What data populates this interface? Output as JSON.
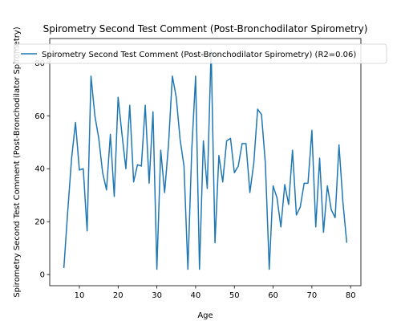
{
  "chart_data": {
    "type": "line",
    "title": "Spirometry Second Test Comment (Post-Bronchodilator Spirometry)",
    "xlabel": "Age",
    "ylabel": "Spirometry Second Test Comment (Post-Bronchodilator Spirometry)",
    "xlim": [
      2.35,
      82.65
    ],
    "ylim": [
      -4.2,
      89.2
    ],
    "xticks": [
      10,
      20,
      30,
      40,
      50,
      60,
      70,
      80
    ],
    "yticks": [
      0,
      20,
      40,
      60,
      80
    ],
    "grid": false,
    "legend_position": "top",
    "series": [
      {
        "name": "Spirometry Second Test Comment (Post-Bronchodilator Spirometry) (R2=0.06)",
        "color": "#1f77b4",
        "x": [
          6,
          7,
          8,
          9,
          10,
          11,
          12,
          13,
          14,
          15,
          16,
          17,
          18,
          19,
          20,
          21,
          22,
          23,
          24,
          25,
          26,
          27,
          28,
          29,
          30,
          31,
          32,
          33,
          34,
          35,
          36,
          37,
          38,
          39,
          40,
          41,
          42,
          43,
          44,
          45,
          46,
          47,
          48,
          49,
          50,
          51,
          52,
          53,
          54,
          55,
          56,
          57,
          58,
          59,
          60,
          61,
          62,
          63,
          64,
          65,
          66,
          67,
          68,
          69,
          70,
          71,
          72,
          73,
          74,
          75,
          76,
          77,
          78,
          79
        ],
        "y": [
          2.5,
          24,
          44,
          57.5,
          39.5,
          40,
          16.5,
          75,
          60,
          51.5,
          38.5,
          32,
          53,
          29.5,
          67,
          53,
          40,
          64,
          35,
          41.5,
          41,
          64,
          34.5,
          61.5,
          2,
          47,
          31,
          49,
          75,
          67,
          51,
          41,
          2,
          47,
          75,
          2,
          50.5,
          32.5,
          85,
          12,
          45,
          35,
          50.5,
          51.5,
          38.5,
          41,
          49.5,
          49.5,
          31,
          42,
          62.5,
          60.5,
          42,
          2,
          33.5,
          29,
          18,
          34,
          26.5,
          47,
          22.5,
          25.5,
          34.5,
          34.5,
          54.5,
          18,
          44,
          16,
          33.5,
          24.5,
          21.5,
          49,
          27.5,
          12
        ]
      }
    ]
  }
}
